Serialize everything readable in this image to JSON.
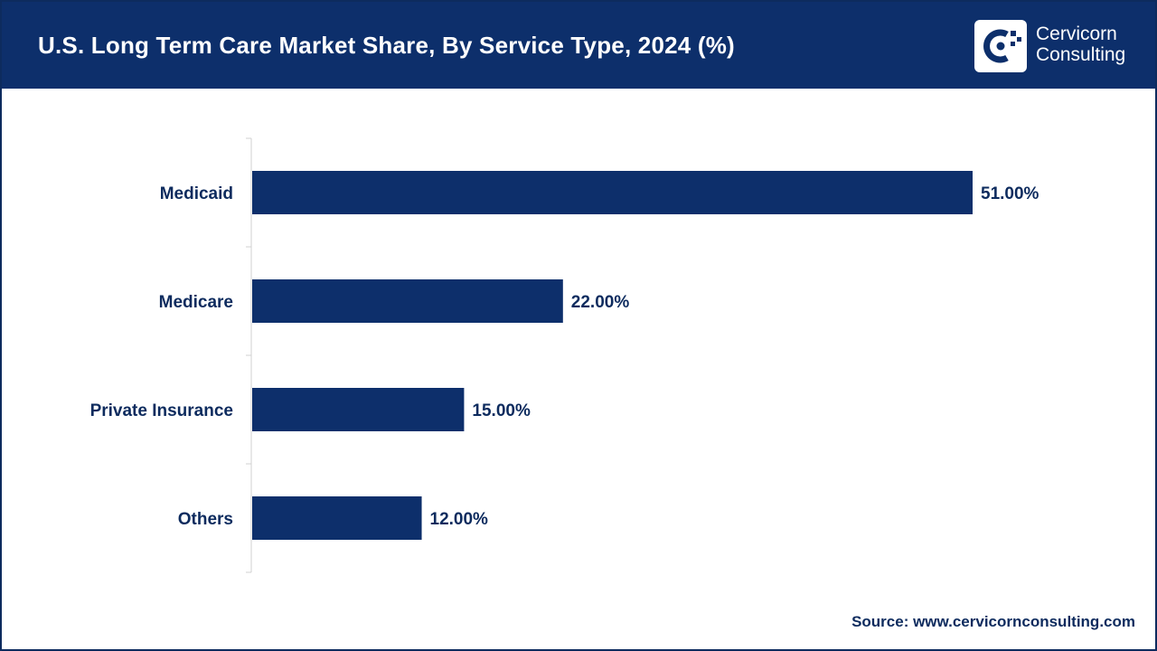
{
  "header": {
    "title": "U.S. Long Term Care Market Share, By Service Type, 2024 (%)",
    "brand_line1": "Cervicorn",
    "brand_line2": "Consulting"
  },
  "colors": {
    "header_bg": "#0d2f6b",
    "bar": "#0d2f6b",
    "text": "#0d2b5e"
  },
  "chart_data": {
    "type": "bar",
    "orientation": "horizontal",
    "title": "U.S. Long Term Care Market Share, By Service Type, 2024 (%)",
    "categories": [
      "Medicaid",
      "Medicare",
      "Private Insurance",
      "Others"
    ],
    "values": [
      51.0,
      22.0,
      15.0,
      12.0
    ],
    "value_labels": [
      "51.00%",
      "22.00%",
      "15.00%",
      "12.00%"
    ],
    "xlabel": "",
    "ylabel": "",
    "xlim": [
      0,
      51
    ],
    "grid": false,
    "legend": "none"
  },
  "footer": {
    "source": "Source: www.cervicornconsulting.com"
  }
}
